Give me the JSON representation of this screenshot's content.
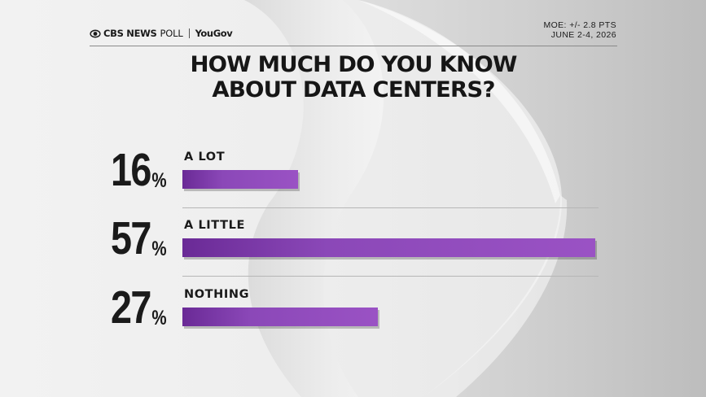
{
  "header": {
    "brand_cbs": "CBS NEWS",
    "brand_poll": "POLL",
    "brand_partner": "YouGov",
    "moe": "MOE: +/- 2.8 PTS",
    "dates": "JUNE 2-4, 2026"
  },
  "chart_data": {
    "type": "bar",
    "orientation": "horizontal",
    "title": "HOW MUCH DO YOU KNOW ABOUT DATA CENTERS?",
    "title_lines": [
      "HOW MUCH DO YOU KNOW",
      "ABOUT DATA CENTERS?"
    ],
    "categories": [
      "A LOT",
      "A LITTLE",
      "NOTHING"
    ],
    "values": [
      16,
      57,
      27
    ],
    "value_labels": [
      "16",
      "57",
      "27"
    ],
    "value_suffix": "%",
    "xlim": [
      0,
      57
    ],
    "bar_color": "#8b48b8",
    "grid": false
  }
}
